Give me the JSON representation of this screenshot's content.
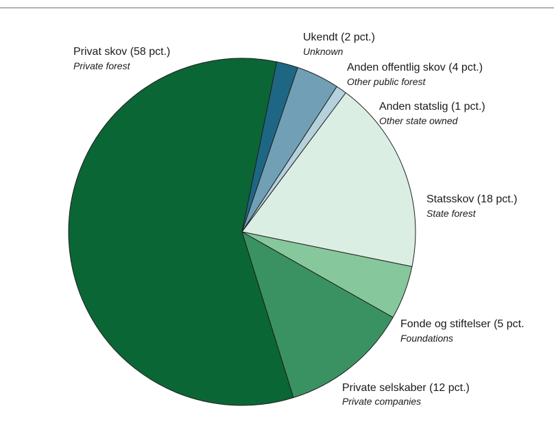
{
  "chart_data": {
    "type": "pie",
    "slices": [
      {
        "label": "Privat skov (58 pct.)",
        "sublabel": "Private forest",
        "value": 58,
        "color": "#0b6635"
      },
      {
        "label": "Ukendt (2 pct.)",
        "sublabel": "Unknown",
        "value": 2,
        "color": "#1e6784"
      },
      {
        "label": "Anden offentlig skov (4 pct.)",
        "sublabel": "Other public forest",
        "value": 4,
        "color": "#719fb6"
      },
      {
        "label": "Anden statslig (1 pct.)",
        "sublabel": "Other state owned",
        "value": 1,
        "color": "#b4d1dc"
      },
      {
        "label": "Statsskov (18 pct.)",
        "sublabel": "State forest",
        "value": 18,
        "color": "#dbeee3"
      },
      {
        "label": "Fonde og stiftelser (5 pct.",
        "sublabel": "Foundations",
        "value": 5,
        "color": "#86c79c"
      },
      {
        "label": "Private selskaber (12 pct.)",
        "sublabel": "Private companies",
        "value": 12,
        "color": "#3a9262"
      }
    ]
  }
}
